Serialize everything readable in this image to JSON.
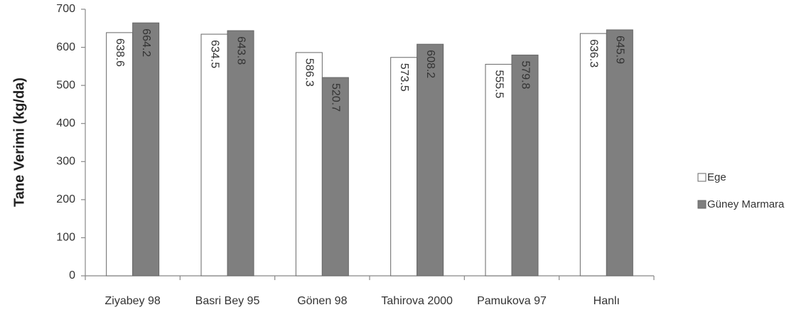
{
  "chart_data": {
    "type": "bar",
    "y_label": "Tane Verimi (kg/da)",
    "categories": [
      "Ziyabey 98",
      "Basri Bey 95",
      "Gönen 98",
      "Tahirova 2000",
      "Pamukova 97",
      "Hanlı"
    ],
    "series": [
      {
        "name": "Ege",
        "color": "#ffffff",
        "values": [
          638.6,
          634.5,
          586.3,
          573.5,
          555.5,
          636.3
        ]
      },
      {
        "name": "Güney Marmara",
        "color": "#7f7f7f",
        "values": [
          664.2,
          643.8,
          520.7,
          608.2,
          579.8,
          645.9
        ]
      }
    ],
    "ylim": [
      0,
      700
    ],
    "yticks": [
      0,
      100,
      200,
      300,
      400,
      500,
      600,
      700
    ],
    "legend": "right"
  }
}
